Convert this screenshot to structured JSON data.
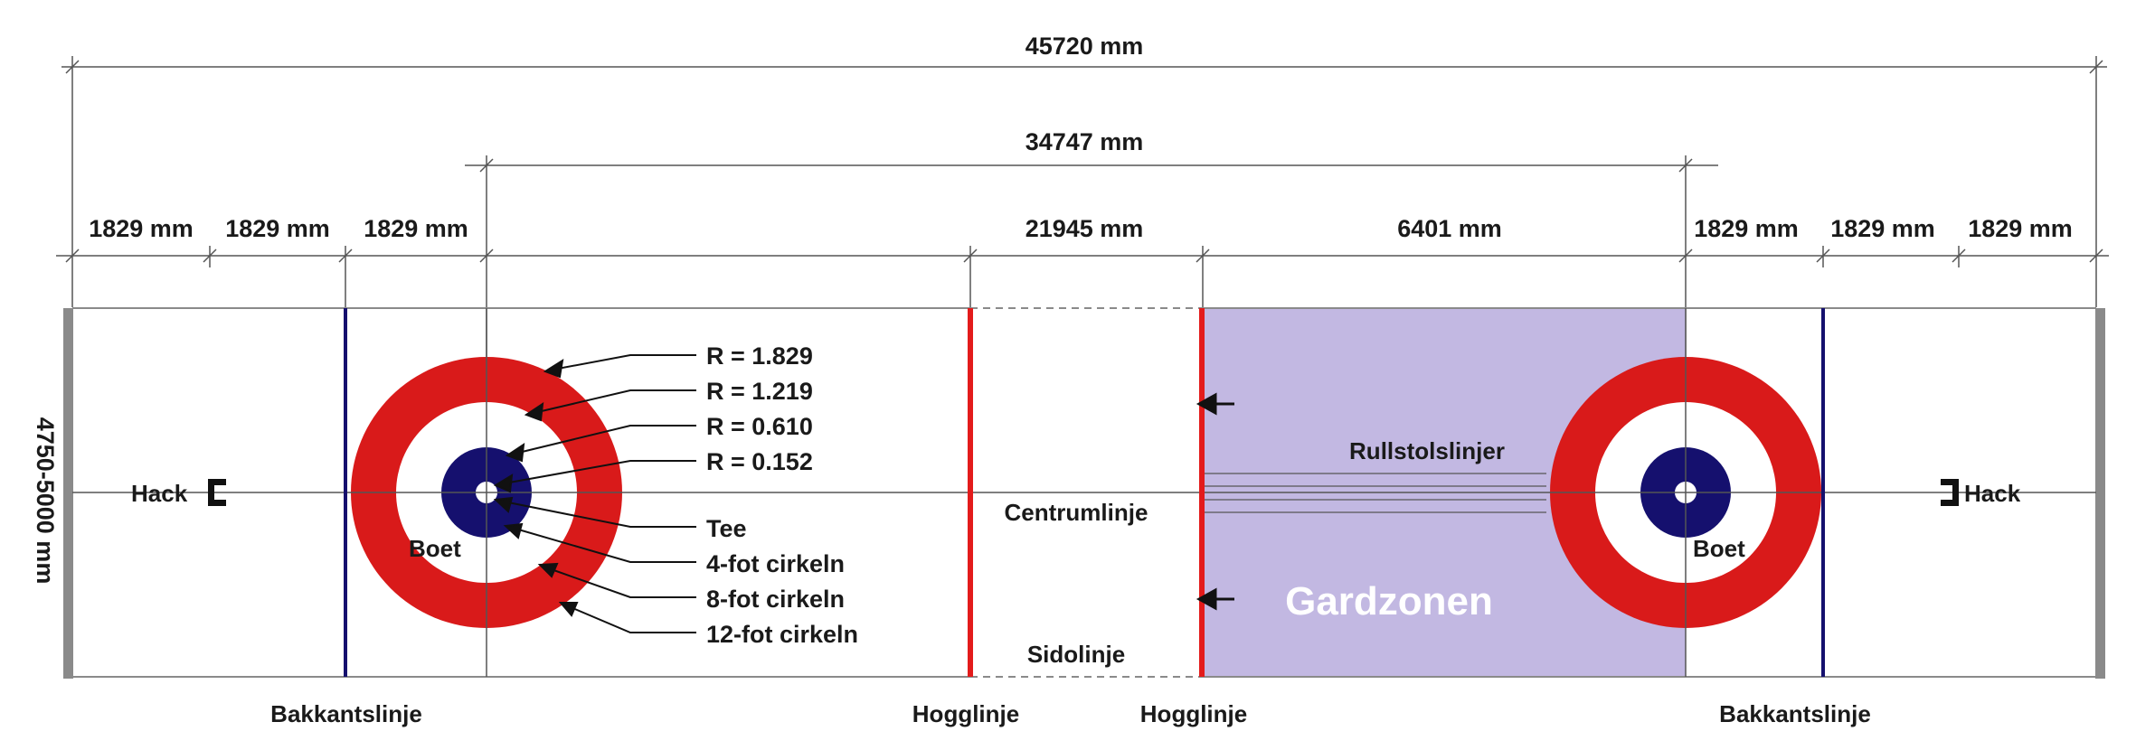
{
  "dimensions": {
    "total": "45720 mm",
    "tee_to_tee": "34747 mm",
    "segment_left_1": "1829 mm",
    "segment_left_2": "1829 mm",
    "segment_left_3": "1829 mm",
    "segment_middle": "21945 mm",
    "segment_guard": "6401 mm",
    "segment_right_1": "1829 mm",
    "segment_right_2": "1829 mm",
    "segment_right_3": "1829 mm",
    "width": "4750-5000 mm"
  },
  "rings": {
    "r1": "R = 1.829",
    "r2": "R = 1.219",
    "r3": "R = 0.610",
    "r4": "R = 0.152",
    "tee": "Tee",
    "four_foot": "4-fot cirkeln",
    "eight_foot": "8-fot cirkeln",
    "twelve_foot": "12-fot cirkeln"
  },
  "labels": {
    "hack_left": "Hack",
    "hack_right": "Hack",
    "boet_left": "Boet",
    "boet_right": "Boet",
    "centre_line": "Centrumlinje",
    "wheelchair_lines": "Rullstolslinjer",
    "side_line": "Sidolinje",
    "guard_zone": "Gardzonen",
    "back_line_left": "Bakkantslinje",
    "hog_line_left": "Hogglinje",
    "hog_line_right": "Hogglinje",
    "back_line_right": "Bakkantslinje"
  },
  "colors": {
    "house_red": "#d91a1a",
    "house_blue": "#15106e",
    "hog_line_red": "#e31b1b",
    "back_line_blue": "#15106e",
    "guard_zone": "#c2b8e2",
    "end_border": "#8a8a8a",
    "dimension_line": "#555555"
  }
}
